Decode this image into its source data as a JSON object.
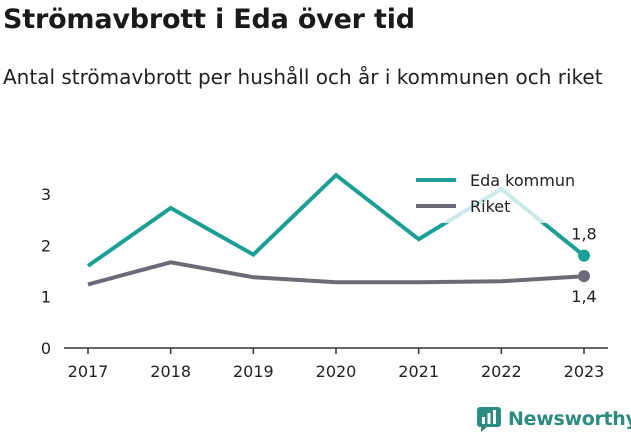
{
  "chart_data": {
    "type": "line",
    "title": "Strömavbrott i Eda över tid",
    "subtitle": "Antal strömavbrott per hushåll och år i kommunen och riket",
    "categories": [
      "2017",
      "2018",
      "2019",
      "2020",
      "2021",
      "2022",
      "2023"
    ],
    "series": [
      {
        "name": "Eda kommun",
        "color": "#1a9e96",
        "values": [
          1.6,
          2.73,
          1.82,
          3.37,
          2.12,
          3.1,
          1.8
        ]
      },
      {
        "name": "Riket",
        "color": "#6b6b75",
        "values": [
          1.24,
          1.67,
          1.38,
          1.28,
          1.28,
          1.3,
          1.4
        ]
      }
    ],
    "end_labels": [
      "1,8",
      "1,4"
    ],
    "yticks": [
      "0",
      "1",
      "2",
      "3"
    ],
    "ylim": [
      0,
      3.5
    ],
    "grid": false,
    "legend_position": "top-right"
  },
  "branding": {
    "logo_text": "Newsworthy",
    "logo_color": "#2e8b7f",
    "icon": "newsworthy-chart-icon"
  }
}
